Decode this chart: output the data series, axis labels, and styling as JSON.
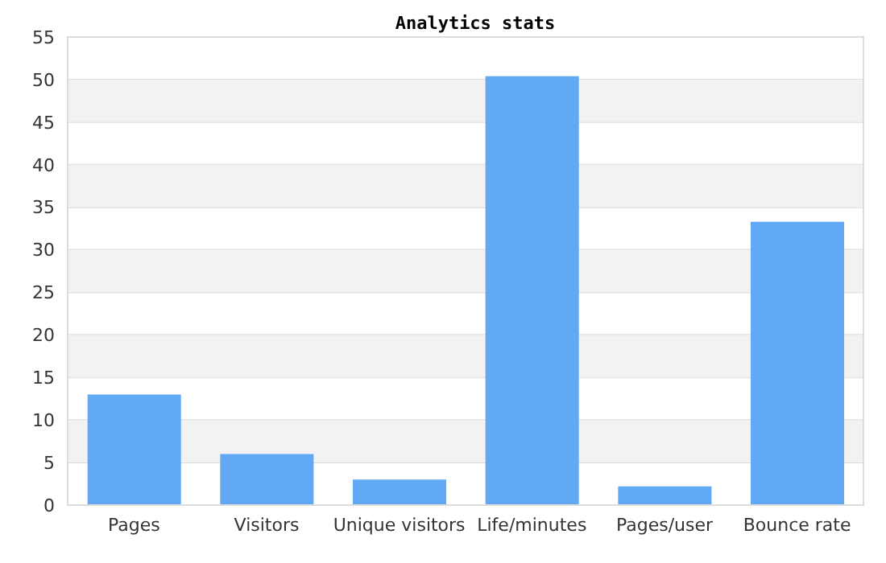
{
  "chart_data": {
    "type": "bar",
    "title": "Analytics stats",
    "categories": [
      "Pages",
      "Visitors",
      "Unique visitors",
      "Life/minutes",
      "Pages/user",
      "Bounce rate"
    ],
    "values": [
      13,
      6,
      3,
      50.4,
      2.2,
      33.3
    ],
    "color": "#61a8f5",
    "ylim": [
      0,
      55
    ],
    "yticks": [
      0,
      5,
      10,
      15,
      20,
      25,
      30,
      35,
      40,
      45,
      50,
      55
    ],
    "grid": "y",
    "legend": false
  }
}
